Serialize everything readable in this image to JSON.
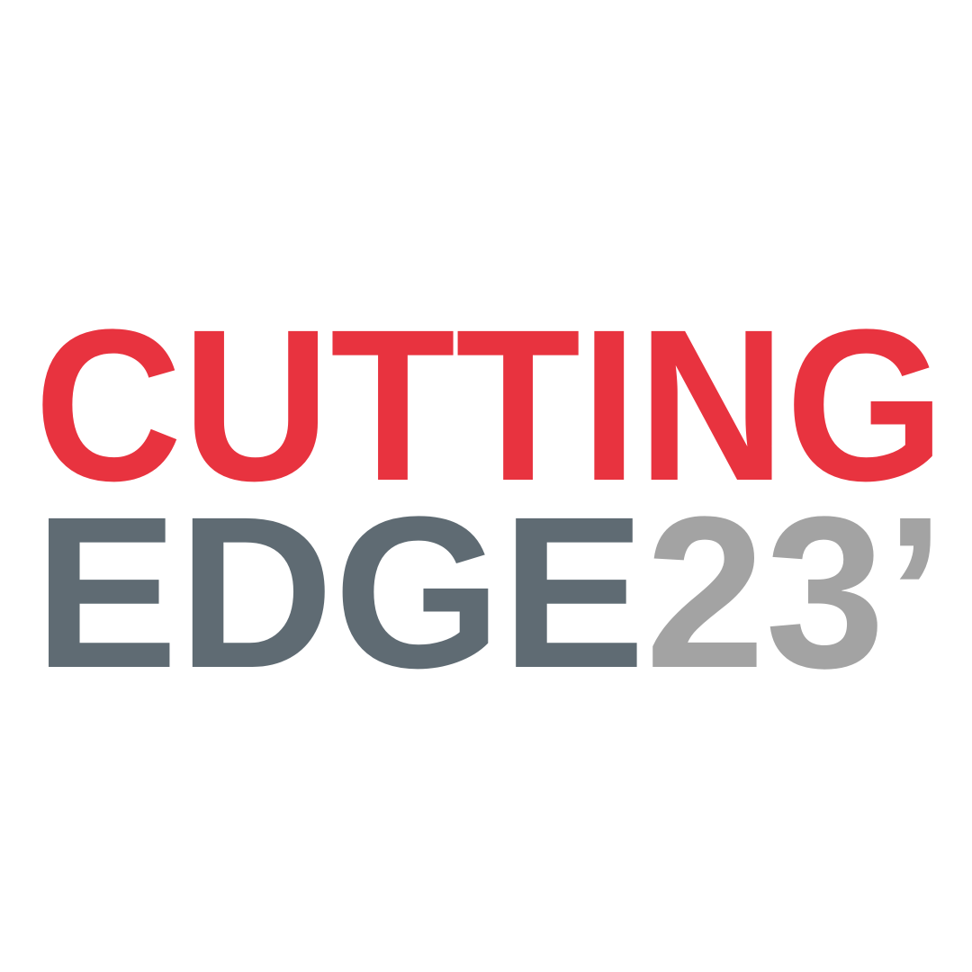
{
  "logo": {
    "line1": "CUTTING",
    "line2_word": "EDGE",
    "line2_year": "23’"
  },
  "colors": {
    "background": "#ffffff",
    "cutting": "#e8333f",
    "edge": "#5f6b73",
    "year": "#a3a3a3"
  }
}
